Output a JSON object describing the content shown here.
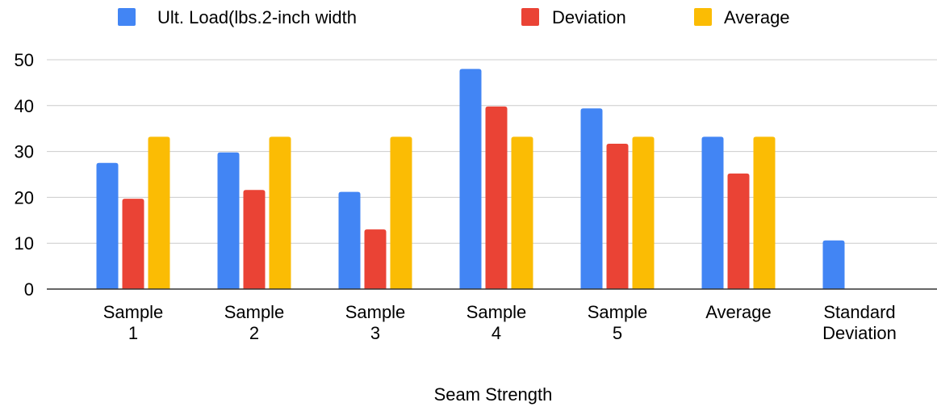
{
  "chart_data": {
    "type": "bar",
    "categories": [
      [
        "Sample",
        "1"
      ],
      [
        "Sample",
        "2"
      ],
      [
        "Sample",
        "3"
      ],
      [
        "Sample",
        "4"
      ],
      [
        "Sample",
        "5"
      ],
      [
        "Average"
      ],
      [
        "Standard",
        "Deviation"
      ]
    ],
    "series": [
      {
        "name": "Ult. Load(lbs.2-inch width",
        "color": "#4285f4",
        "values": [
          27.5,
          29.8,
          21.2,
          48,
          39.4,
          33.2,
          10.6
        ]
      },
      {
        "name": "Deviation",
        "color": "#ea4335",
        "values": [
          19.7,
          21.6,
          13,
          39.8,
          31.7,
          25.2,
          null
        ]
      },
      {
        "name": "Average",
        "color": "#fbbc04",
        "values": [
          33.2,
          33.2,
          33.2,
          33.2,
          33.2,
          33.2,
          null
        ]
      }
    ],
    "xlabel": "Seam Strength",
    "ylabel": "",
    "ylim": [
      0,
      50
    ],
    "yticks": [
      0,
      10,
      20,
      30,
      40,
      50
    ],
    "grid": true,
    "legend_position": "top"
  }
}
